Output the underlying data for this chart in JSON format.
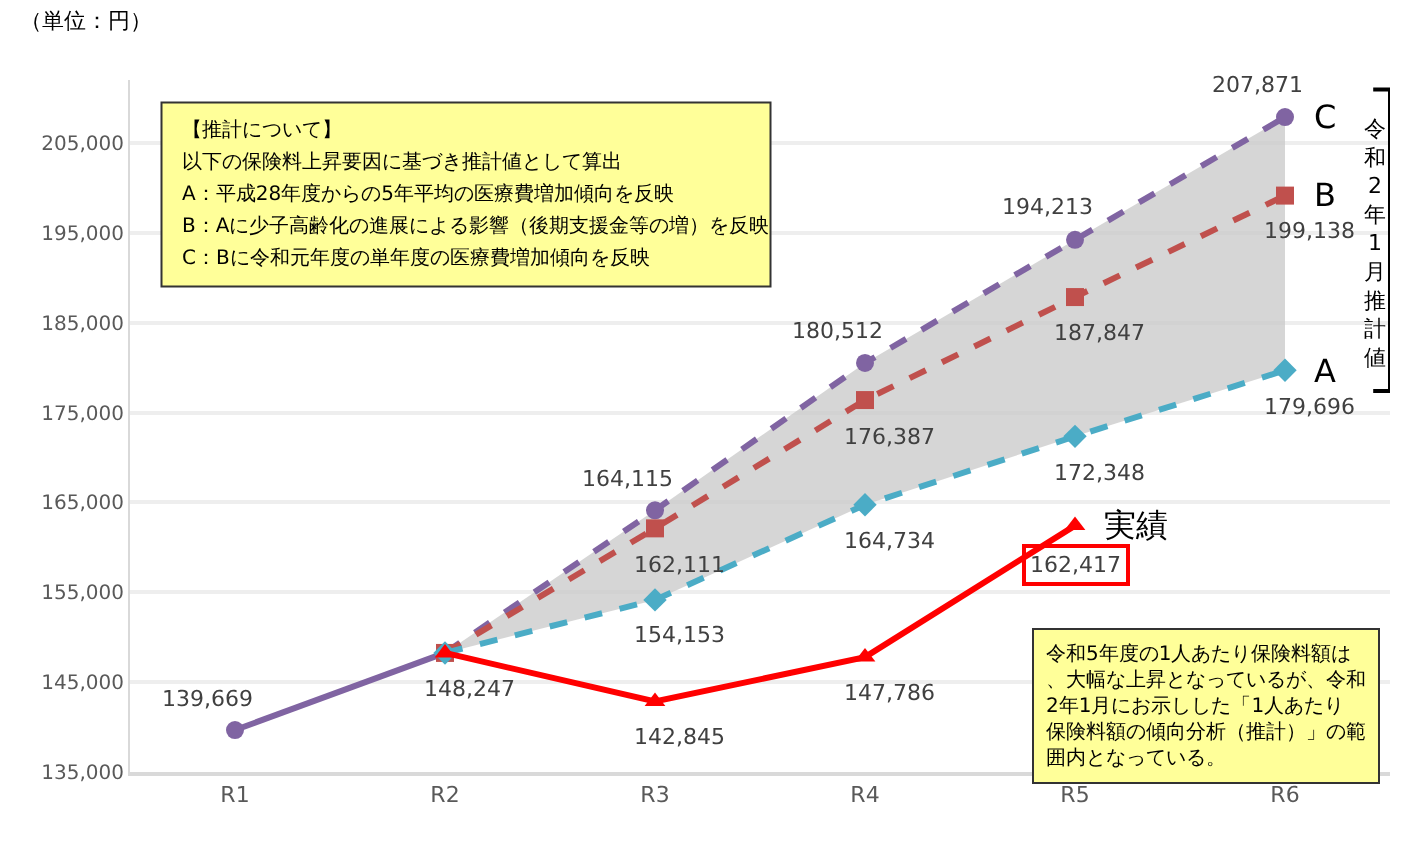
{
  "chart_data": {
    "type": "line",
    "ylabel": "（単位：円）",
    "categories": [
      "R1",
      "R2",
      "R3",
      "R4",
      "R5",
      "R6"
    ],
    "ylim": [
      135000,
      212000
    ],
    "yticks": [
      {
        "value": 135000,
        "label": "135,000"
      },
      {
        "value": 145000,
        "label": "145,000"
      },
      {
        "value": 155000,
        "label": "155,000"
      },
      {
        "value": 165000,
        "label": "165,000"
      },
      {
        "value": 175000,
        "label": "175,000"
      },
      {
        "value": 185000,
        "label": "185,000"
      },
      {
        "value": 195000,
        "label": "195,000"
      },
      {
        "value": 205000,
        "label": "205,000"
      }
    ],
    "grid": "y",
    "legend": false,
    "series": [
      {
        "color": "#8064a2",
        "marker": "circle",
        "line_style": "solid",
        "values": [
          139669,
          148247,
          null,
          null,
          null,
          null
        ],
        "value_labels": [
          "139,669",
          "148,247",
          null,
          null,
          null,
          null
        ]
      },
      {
        "name": "C",
        "color": "#8064a2",
        "marker": "circle",
        "line_style": "dashed",
        "values": [
          null,
          148247,
          164115,
          180512,
          194213,
          207871
        ],
        "value_labels": [
          null,
          null,
          "164,115",
          "180,512",
          "194,213",
          "207,871"
        ]
      },
      {
        "name": "B",
        "color": "#c0504d",
        "marker": "square",
        "line_style": "dashed",
        "values": [
          null,
          148247,
          162111,
          176387,
          187847,
          199138
        ],
        "value_labels": [
          null,
          null,
          "162,111",
          "176,387",
          "187,847",
          "199,138"
        ],
        "lower": [
          null,
          148247,
          154153,
          164734,
          172348,
          179696
        ],
        "upper": [
          null,
          148247,
          164115,
          180512,
          194213,
          207871
        ]
      },
      {
        "name": "A",
        "color": "#4bacc6",
        "marker": "diamond",
        "line_style": "dashed",
        "values": [
          null,
          148247,
          154153,
          164734,
          172348,
          179696
        ],
        "value_labels": [
          null,
          null,
          "154,153",
          "164,734",
          "172,348",
          "179,696"
        ]
      },
      {
        "name": "実績",
        "color": "#ff0000",
        "marker": "triangle",
        "line_style": "solid",
        "values": [
          null,
          148247,
          142845,
          147786,
          162417,
          null
        ],
        "value_labels": [
          null,
          null,
          "142,845",
          "147,786",
          null,
          null
        ]
      }
    ],
    "annotations": [
      "【推計について】",
      "以下の保険料上昇要因に基づき推計値として算出",
      "A：平成28年度からの5年平均の医療費増加傾向を反映",
      "B：Aに少子高齢化の進展による影響（後期支援金等の増）を反映",
      "C：Bに令和元年度の単年度の医療費増加傾向を反映",
      "令和5年度の1人あたり保険料額は、大幅な上昇となっているが、令和2年1月にお示しした「1人あたり保険料額の傾向分析（推計）」の範囲内となっている。",
      "令和2年1月推計値",
      {
        "text": "162,417",
        "x": "R5",
        "y": 162417
      }
    ]
  }
}
